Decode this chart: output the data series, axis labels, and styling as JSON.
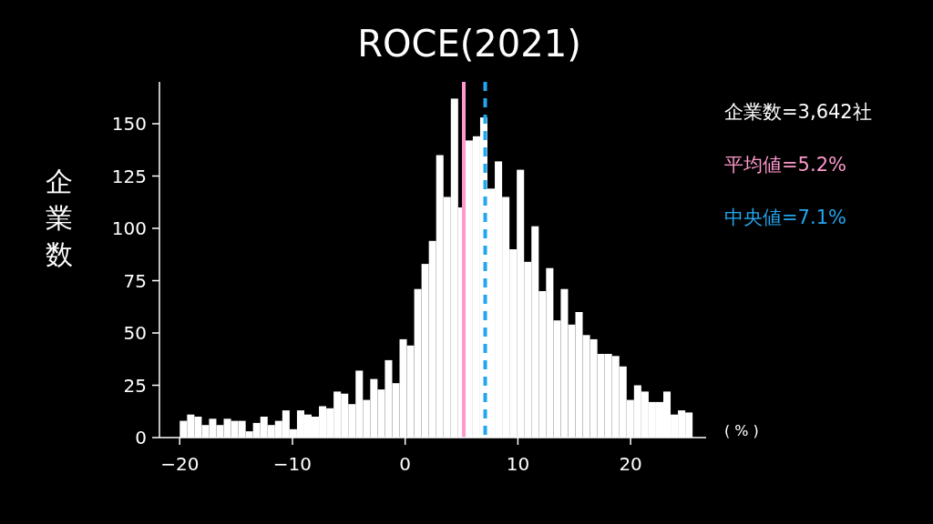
{
  "chart_data": {
    "type": "histogram",
    "title": "ROCE(2021)",
    "ylabel": "企業数",
    "xlabel": "( % )",
    "bins": [
      -20,
      -19.35,
      -18.7,
      -18.05,
      -17.4,
      -16.75,
      -16.1,
      -15.45,
      -14.8,
      -14.15,
      -13.5,
      -12.85,
      -12.2,
      -11.55,
      -10.9,
      -10.25,
      -9.6,
      -8.95,
      -8.3,
      -7.65,
      -7,
      -6.35,
      -5.7,
      -5.05,
      -4.4,
      -3.75,
      -3.1,
      -2.45,
      -1.8,
      -1.15,
      -0.5,
      0.15,
      0.8,
      1.45,
      2.1,
      2.75,
      3.4,
      4.05,
      4.7,
      5.35,
      6,
      6.65,
      7.3,
      7.95,
      8.6,
      9.25,
      9.9,
      10.55,
      11.2,
      11.85,
      12.5,
      13.15,
      13.8,
      14.45,
      15.1,
      15.75,
      16.4,
      17.05,
      17.7,
      18.35,
      19,
      19.65,
      20.3,
      20.95,
      21.6,
      22.25,
      22.9,
      23.55,
      24.2,
      24.85,
      25.5
    ],
    "values": [
      8,
      11,
      10,
      6,
      9,
      6,
      9,
      8,
      8,
      3,
      7,
      10,
      6,
      8,
      13,
      4,
      13,
      11,
      10,
      15,
      14,
      22,
      21,
      16,
      32,
      18,
      28,
      23,
      37,
      26,
      47,
      44,
      71,
      83,
      94,
      135,
      115,
      162,
      110,
      142,
      144,
      153,
      119,
      132,
      115,
      90,
      128,
      84,
      101,
      70,
      81,
      56,
      71,
      54,
      60,
      49,
      47,
      40,
      40,
      39,
      34,
      18,
      25,
      22,
      17,
      17,
      22,
      11,
      13,
      12
    ],
    "color": "#ffffff",
    "xlim": [
      -21.8,
      26.7
    ],
    "ylim": [
      0,
      170
    ],
    "xticks": [
      {
        "value": -20,
        "label": "−20"
      },
      {
        "value": -10,
        "label": "−10"
      },
      0,
      10,
      20
    ],
    "yticks": [
      0,
      25,
      50,
      75,
      100,
      125,
      150
    ],
    "ref_lines": [
      {
        "axis": "x",
        "value": 5.2,
        "label": "平均値=5.2%",
        "color": "#ff99cc",
        "line_style": "solid"
      },
      {
        "axis": "x",
        "value": 7.1,
        "label": "中央値=7.1%",
        "color": "#22a6f0",
        "line_style": "dashed"
      }
    ],
    "annotations": [
      "企業数=3,642社"
    ]
  }
}
